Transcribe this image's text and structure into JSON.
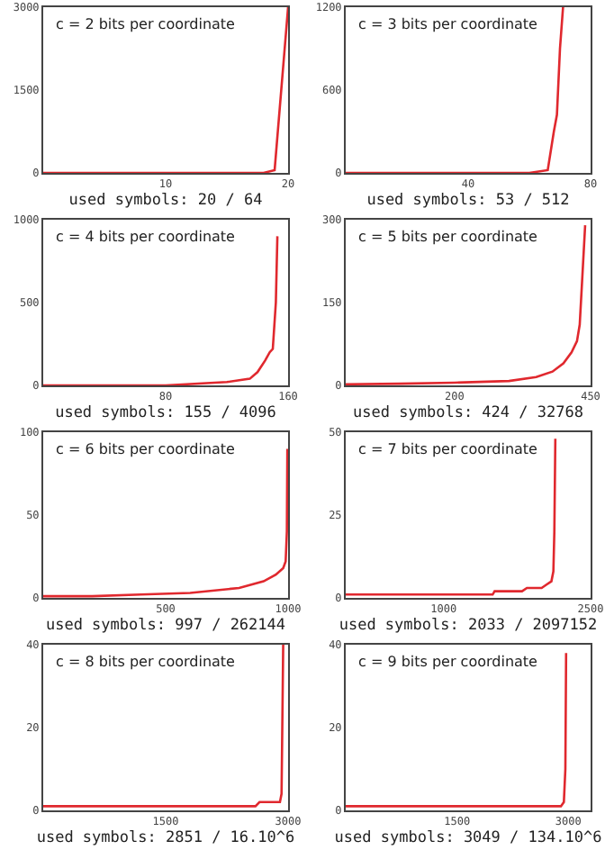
{
  "chart_data": [
    {
      "type": "line",
      "title": "c = 2 bits per coordinate",
      "xlabel": "used symbols: 20 / 64",
      "xlim": [
        0,
        20
      ],
      "xticks": [
        10,
        20
      ],
      "ylim": [
        0,
        3000
      ],
      "yticks": [
        0,
        1500,
        3000
      ],
      "grid": false,
      "series": [
        {
          "color": "#e0282e",
          "x": [
            0,
            5,
            10,
            15,
            18,
            18.9,
            20
          ],
          "values": [
            0,
            0,
            0,
            0,
            0,
            50,
            3000
          ]
        }
      ]
    },
    {
      "type": "line",
      "title": "c = 3 bits per coordinate",
      "xlabel": "used symbols: 53 / 512",
      "xlim": [
        0,
        80
      ],
      "xticks": [
        40,
        80
      ],
      "ylim": [
        0,
        1200
      ],
      "yticks": [
        0,
        600,
        1200
      ],
      "grid": false,
      "series": [
        {
          "color": "#e0282e",
          "x": [
            0,
            20,
            40,
            60,
            66,
            68,
            69,
            70,
            71
          ],
          "values": [
            0,
            0,
            0,
            0,
            20,
            300,
            420,
            900,
            1200
          ]
        }
      ]
    },
    {
      "type": "line",
      "title": "c = 4 bits per coordinate",
      "xlabel": "used symbols: 155 / 4096",
      "xlim": [
        0,
        160
      ],
      "xticks": [
        80,
        160
      ],
      "ylim": [
        0,
        1000
      ],
      "yticks": [
        0,
        500,
        1000
      ],
      "grid": false,
      "series": [
        {
          "color": "#e0282e",
          "x": [
            0,
            40,
            80,
            120,
            135,
            140,
            145,
            148,
            150,
            152,
            153
          ],
          "values": [
            0,
            0,
            0,
            20,
            40,
            80,
            150,
            200,
            220,
            500,
            900
          ]
        }
      ]
    },
    {
      "type": "line",
      "title": "c = 5 bits per coordinate",
      "xlabel": "used symbols: 424 / 32768",
      "xlim": [
        0,
        450
      ],
      "xticks": [
        200,
        450
      ],
      "ylim": [
        0,
        300
      ],
      "yticks": [
        0,
        150,
        300
      ],
      "grid": false,
      "series": [
        {
          "color": "#e0282e",
          "x": [
            0,
            100,
            200,
            300,
            350,
            380,
            400,
            415,
            425,
            430,
            435,
            440
          ],
          "values": [
            2,
            3,
            5,
            8,
            15,
            25,
            40,
            60,
            80,
            110,
            200,
            290
          ]
        }
      ]
    },
    {
      "type": "line",
      "title": "c = 6 bits per coordinate",
      "xlabel": "used symbols: 997 / 262144",
      "xlim": [
        0,
        1000
      ],
      "xticks": [
        500,
        1000
      ],
      "ylim": [
        0,
        100
      ],
      "yticks": [
        0,
        50,
        100
      ],
      "grid": false,
      "series": [
        {
          "color": "#e0282e",
          "x": [
            0,
            200,
            400,
            600,
            800,
            900,
            950,
            980,
            990,
            995,
            997
          ],
          "values": [
            1,
            1,
            2,
            3,
            6,
            10,
            14,
            18,
            22,
            40,
            90
          ]
        }
      ]
    },
    {
      "type": "line",
      "title": "c = 7 bits per coordinate",
      "xlabel": "used symbols: 2033 / 2097152",
      "xlim": [
        0,
        2500
      ],
      "xticks": [
        1000,
        2500
      ],
      "ylim": [
        0,
        50
      ],
      "yticks": [
        0,
        25,
        50
      ],
      "grid": false,
      "series": [
        {
          "color": "#e0282e",
          "x": [
            0,
            500,
            1000,
            1500,
            1520,
            1800,
            1850,
            2000,
            2050,
            2100,
            2120,
            2130,
            2140
          ],
          "values": [
            1,
            1,
            1,
            1,
            2,
            2,
            3,
            3,
            4,
            5,
            8,
            20,
            48
          ]
        }
      ]
    },
    {
      "type": "line",
      "title": "c = 8 bits per coordinate",
      "xlabel": "used symbols: 2851 / 16.10^6",
      "xlim": [
        0,
        3000
      ],
      "xticks": [
        1500,
        3000
      ],
      "ylim": [
        0,
        40
      ],
      "yticks": [
        0,
        20,
        40
      ],
      "grid": false,
      "series": [
        {
          "color": "#e0282e",
          "x": [
            0,
            1000,
            2000,
            2600,
            2650,
            2900,
            2920,
            2940
          ],
          "values": [
            1,
            1,
            1,
            1,
            2,
            2,
            4,
            40
          ]
        }
      ]
    },
    {
      "type": "line",
      "title": "c = 9 bits per coordinate",
      "xlabel": "used symbols: 3049 / 134.10^6",
      "xlim": [
        0,
        3300
      ],
      "xticks": [
        1500,
        3000
      ],
      "ylim": [
        0,
        40
      ],
      "yticks": [
        0,
        20,
        40
      ],
      "grid": false,
      "series": [
        {
          "color": "#e0282e",
          "x": [
            0,
            1000,
            2000,
            2900,
            2940,
            2960,
            2970
          ],
          "values": [
            1,
            1,
            1,
            1,
            2,
            10,
            38
          ]
        }
      ]
    }
  ]
}
